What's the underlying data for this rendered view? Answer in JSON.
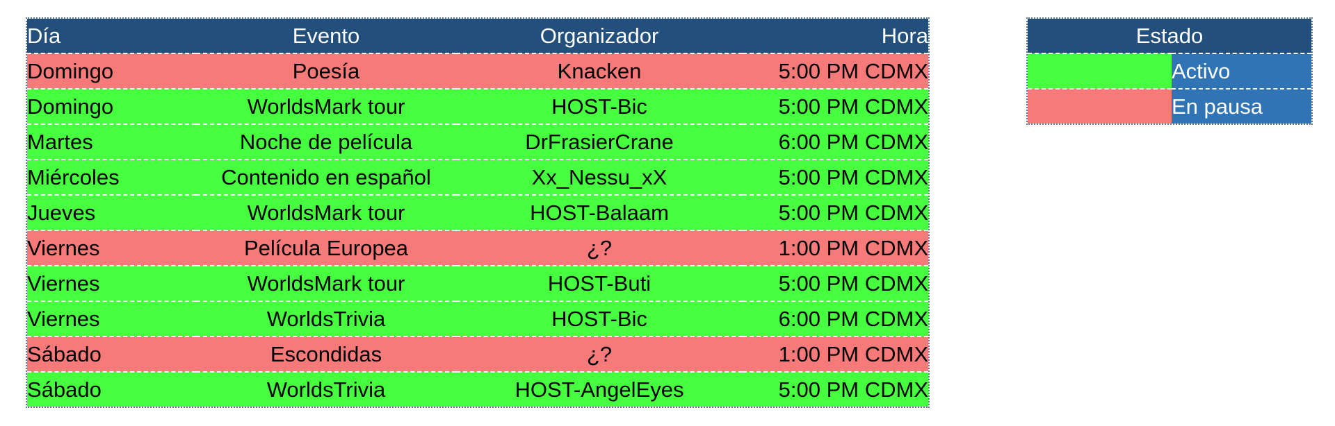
{
  "colors": {
    "header": "#234f7c",
    "active": "#46ff3f",
    "paused": "#f77a7a",
    "legend_label": "#3174b5"
  },
  "schedule": {
    "headers": [
      "Día",
      "Evento",
      "Organizador",
      "Hora"
    ],
    "rows": [
      {
        "dia": "Domingo",
        "evento": "Poesía",
        "organizador": "Knacken",
        "hora": "5:00 PM CDMX",
        "estado": "paused"
      },
      {
        "dia": "Domingo",
        "evento": "WorldsMark tour",
        "organizador": "HOST-Bic",
        "hora": "5:00 PM CDMX",
        "estado": "active"
      },
      {
        "dia": "Martes",
        "evento": "Noche de película",
        "organizador": "DrFrasierCrane",
        "hora": "6:00 PM CDMX",
        "estado": "active"
      },
      {
        "dia": "Miércoles",
        "evento": "Contenido en español",
        "organizador": "Xx_Nessu_xX",
        "hora": "5:00 PM CDMX",
        "estado": "active"
      },
      {
        "dia": "Jueves",
        "evento": "WorldsMark tour",
        "organizador": "HOST-Balaam",
        "hora": "5:00 PM CDMX",
        "estado": "active"
      },
      {
        "dia": "Viernes",
        "evento": "Película Europea",
        "organizador": "¿?",
        "hora": "1:00 PM CDMX",
        "estado": "paused"
      },
      {
        "dia": "Viernes",
        "evento": "WorldsMark tour",
        "organizador": "HOST-Buti",
        "hora": "5:00 PM CDMX",
        "estado": "active"
      },
      {
        "dia": "Viernes",
        "evento": "WorldsTrivia",
        "organizador": "HOST-Bic",
        "hora": "6:00 PM CDMX",
        "estado": "active"
      },
      {
        "dia": "Sábado",
        "evento": "Escondidas",
        "organizador": "¿?",
        "hora": "1:00 PM CDMX",
        "estado": "paused"
      },
      {
        "dia": "Sábado",
        "evento": "WorldsTrivia",
        "organizador": "HOST-AngelEyes",
        "hora": "5:00 PM CDMX",
        "estado": "active"
      }
    ]
  },
  "legend": {
    "title": "Estado",
    "items": [
      {
        "label": "Activo",
        "estado": "active"
      },
      {
        "label": "En pausa",
        "estado": "paused"
      }
    ]
  }
}
